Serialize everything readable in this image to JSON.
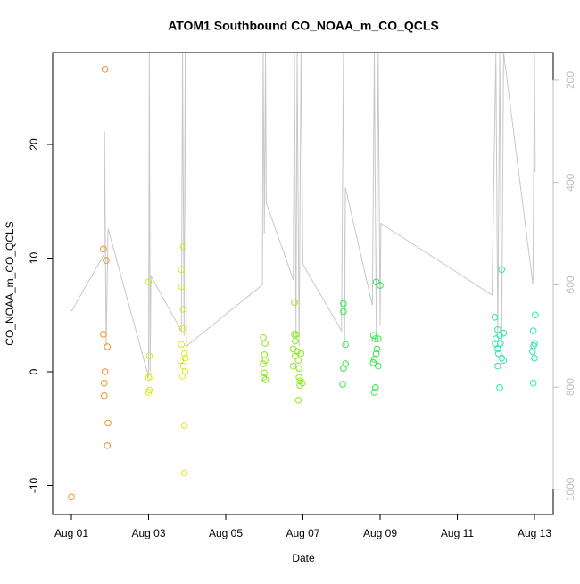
{
  "chart_data": {
    "type": "scatter",
    "title": "ATOM1 Southbound CO_NOAA_m_CO_QCLS",
    "x_label": "Date",
    "y_label": "CO_NOAA_m_CO_QCLS",
    "xlim": [
      -0.486,
      12.486
    ],
    "ylim": [
      -12.55,
      28.08
    ],
    "y2lim": [
      1049,
      146
    ],
    "xticks": [
      {
        "value": 0,
        "label": "Aug 01"
      },
      {
        "value": 2,
        "label": "Aug 03"
      },
      {
        "value": 4,
        "label": "Aug 05"
      },
      {
        "value": 6,
        "label": "Aug 07"
      },
      {
        "value": 8,
        "label": "Aug 09"
      },
      {
        "value": 10,
        "label": "Aug 11"
      },
      {
        "value": 12,
        "label": "Aug 13"
      }
    ],
    "yticks": [
      -10,
      0,
      10,
      20
    ],
    "y2ticks": [
      200,
      400,
      600,
      800,
      1000
    ],
    "y2_color": "#bebebe",
    "series": [
      {
        "type": "line",
        "axis": "y2",
        "color": "#c8c8c8",
        "x": [
          0,
          0.85,
          0.86,
          0.9,
          0.95,
          2.0,
          2.02,
          2.04,
          2.06,
          2.85,
          2.88,
          2.92,
          2.95,
          2.98,
          4.95,
          4.97,
          5.0,
          5.03,
          5.05,
          5.75,
          5.78,
          5.82,
          5.85,
          5.9,
          5.95,
          6.0,
          7.0,
          7.05,
          7.08,
          7.1,
          7.8,
          7.85,
          7.9,
          7.95,
          8.0,
          8.02,
          10.9,
          11.0,
          11.05,
          11.1,
          11.15,
          11.2,
          11.96,
          12.0,
          12.02
        ],
        "values": [
          652,
          540,
          300,
          720,
          490,
          780,
          146,
          770,
          583,
          690,
          146,
          700,
          146,
          720,
          600,
          146,
          500,
          146,
          440,
          590,
          146,
          700,
          146,
          720,
          146,
          560,
          690,
          146,
          720,
          410,
          640,
          146,
          700,
          146,
          680,
          480,
          620,
          146,
          700,
          146,
          720,
          146,
          600,
          146,
          380
        ]
      },
      {
        "type": "points",
        "color": "#f0922a",
        "x": [
          0.0,
          0.87,
          0.83,
          0.9,
          0.83,
          0.93,
          0.87,
          0.85,
          0.85,
          0.95,
          0.93
        ],
        "values": [
          -11.0,
          26.6,
          10.8,
          9.8,
          3.3,
          2.2,
          0.0,
          -1.0,
          -2.1,
          -4.5,
          -6.5
        ]
      },
      {
        "type": "points",
        "color": "#d8e81a",
        "x": [
          2.0,
          2.02,
          2.05,
          2.0,
          2.02,
          2.0,
          2.9,
          2.85,
          2.85,
          2.9,
          2.88,
          2.85,
          2.93,
          2.95,
          2.83,
          2.9,
          2.95,
          2.88,
          2.93,
          2.93
        ],
        "values": [
          7.9,
          1.4,
          -0.4,
          -0.5,
          -1.6,
          -1.8,
          11.0,
          9.0,
          7.5,
          5.5,
          3.8,
          2.4,
          1.6,
          1.2,
          1.0,
          0.5,
          0.0,
          -0.4,
          -4.7,
          -8.9
        ]
      },
      {
        "type": "points",
        "color": "#8ee81a",
        "x": [
          4.97,
          5.02,
          5.0,
          5.02,
          4.97,
          5.0,
          4.98,
          5.03,
          5.78,
          5.78,
          5.82,
          5.8,
          5.75,
          5.85,
          5.95,
          5.8,
          5.88,
          5.75,
          5.9,
          5.9,
          5.93,
          5.98,
          5.92,
          5.88
        ],
        "values": [
          3.0,
          2.5,
          1.5,
          1.0,
          0.7,
          -0.1,
          -0.5,
          -0.7,
          6.1,
          3.3,
          3.3,
          2.7,
          2.0,
          1.8,
          1.6,
          1.4,
          1.0,
          0.5,
          0.3,
          -0.5,
          -0.8,
          -1.0,
          -1.2,
          -2.5
        ]
      },
      {
        "type": "points",
        "color": "#35e84a",
        "x": [
          7.05,
          7.05,
          7.1,
          7.1,
          7.05,
          7.03,
          7.9,
          8.0,
          7.83,
          7.87,
          7.95,
          7.92,
          7.9,
          7.85,
          7.82,
          7.95,
          7.88,
          7.85
        ],
        "values": [
          6.0,
          5.3,
          2.4,
          0.7,
          0.3,
          -1.1,
          7.9,
          7.6,
          3.2,
          2.9,
          2.9,
          2.0,
          1.6,
          1.1,
          0.8,
          0.5,
          -1.4,
          -1.8
        ]
      },
      {
        "type": "points",
        "color": "#2ae8a8",
        "x": [
          11.15,
          10.97,
          11.05,
          11.2,
          11.1,
          11.0,
          11.12,
          10.98,
          11.05,
          11.07,
          11.15,
          11.2,
          11.05,
          11.1,
          12.02,
          11.97,
          12.0,
          11.98,
          11.95,
          12.0,
          11.97
        ],
        "values": [
          9.0,
          4.8,
          3.7,
          3.4,
          3.2,
          2.9,
          2.5,
          2.5,
          2.0,
          1.6,
          1.2,
          1.0,
          0.5,
          -1.4,
          5.0,
          3.6,
          2.5,
          2.3,
          1.8,
          1.2,
          -1.0
        ]
      }
    ]
  }
}
